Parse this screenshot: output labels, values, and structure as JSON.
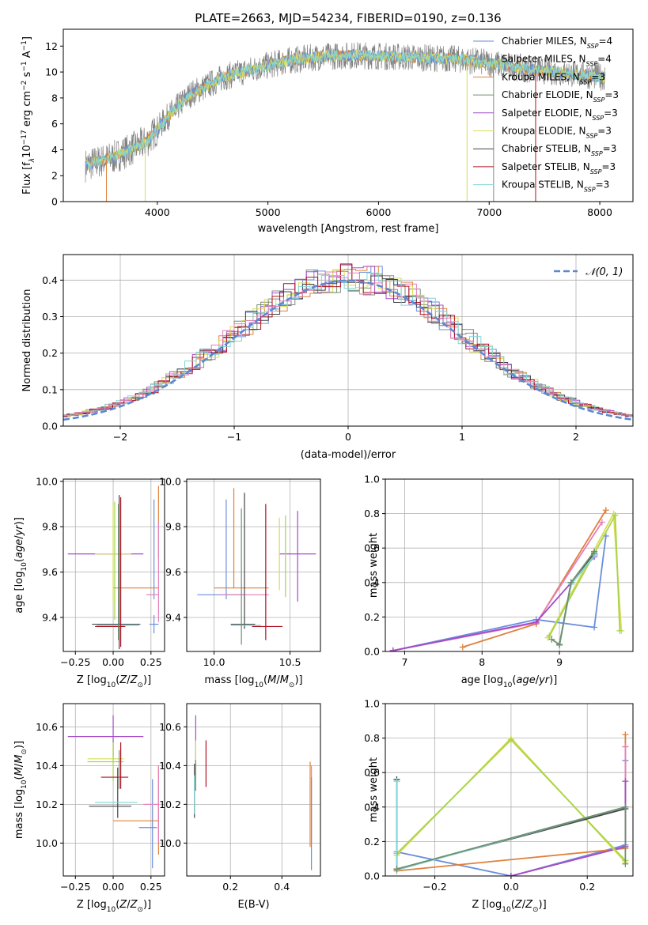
{
  "colors": {
    "Chabrier MILES": "#6a8edc",
    "Salpeter MILES": "#8a8a8a",
    "Kroupa MILES": "#e0803a",
    "Chabrier ELODIE": "#6f8f6f",
    "Salpeter ELODIE": "#a24cc8",
    "Kroupa ELODIE": "#d9db55",
    "Chabrier STELIB": "#444444",
    "Salpeter STELIB": "#b01020",
    "Kroupa STELIB": "#7fd4d8",
    "pink": "#e57fb9",
    "lime": "#a8d44a",
    "gaussian": "#5b87d6"
  },
  "chart_data": [
    {
      "id": "spectrum",
      "type": "line",
      "title": "PLATE=2663, MJD=54234, FIBERID=0190, z=0.136",
      "xlabel": "wavelength [Angstrom, rest frame]",
      "ylabel": "Flux [f",
      "xlim": [
        3150,
        8300
      ],
      "ylim": [
        0,
        13.3
      ],
      "xticks": [
        4000,
        5000,
        6000,
        7000,
        8000
      ],
      "yticks": [
        0,
        2,
        4,
        6,
        8,
        10,
        12
      ],
      "continuum_x": [
        3350,
        3600,
        3900,
        4100,
        4300,
        4600,
        4900,
        5200,
        5500,
        5800,
        6100,
        6400,
        6700,
        7000,
        7300,
        7600,
        8050
      ],
      "continuum_y": [
        2.8,
        3.4,
        4.6,
        6.6,
        8.3,
        9.6,
        10.3,
        10.9,
        11.2,
        11.3,
        11.2,
        11.1,
        11.0,
        10.7,
        10.3,
        10.0,
        9.6
      ],
      "legend": [
        {
          "base": "Chabrier MILES, N",
          "sub": "SSP",
          "tail": "=4"
        },
        {
          "base": "Salpeter MILES, N",
          "sub": "SSP",
          "tail": "=4"
        },
        {
          "base": "Kroupa MILES, N",
          "sub": "SSP",
          "tail": "=3"
        },
        {
          "base": "Chabrier ELODIE, N",
          "sub": "SSP",
          "tail": "=3"
        },
        {
          "base": "Salpeter ELODIE, N",
          "sub": "SSP",
          "tail": "=3"
        },
        {
          "base": "Kroupa ELODIE, N",
          "sub": "SSP",
          "tail": "=3"
        },
        {
          "base": "Chabrier STELIB, N",
          "sub": "SSP",
          "tail": "=3"
        },
        {
          "base": "Salpeter STELIB, N",
          "sub": "SSP",
          "tail": "=3"
        },
        {
          "base": "Kroupa STELIB, N",
          "sub": "SSP",
          "tail": "=3"
        }
      ]
    },
    {
      "id": "residuals",
      "type": "histogram",
      "xlabel": "(data-model)/error",
      "ylabel": "Normed distribution",
      "xlim": [
        -2.5,
        2.5
      ],
      "ylim": [
        0,
        0.47
      ],
      "xticks": [
        -2,
        -1,
        0,
        1,
        2
      ],
      "yticks": [
        0.0,
        0.1,
        0.2,
        0.3,
        0.4
      ],
      "legend": "N(0,1)",
      "gaussian": {
        "mean": 0,
        "sigma": 1
      }
    },
    {
      "id": "age_vs_Z",
      "type": "errorbar",
      "xlabel": "Z [log",
      "ylabel": "age  [log",
      "xlim": [
        -0.33,
        0.34
      ],
      "ylim": [
        9.25,
        10.01
      ],
      "xticks": [
        -0.25,
        0.0,
        0.25
      ],
      "xticklabels": [
        "−0.25",
        "0.00",
        "0.25"
      ],
      "yticks": [
        9.4,
        9.6,
        9.8,
        10.0
      ],
      "points": [
        {
          "c": "Chabrier MILES",
          "x": 0.27,
          "xe": 0.03,
          "y": 9.37,
          "ye": 0.04
        },
        {
          "c": "Chabrier MILES",
          "x": 0.27,
          "xe": 0.0,
          "y": 9.7,
          "ye": 0.22
        },
        {
          "c": "Kroupa MILES",
          "x": 0.15,
          "xe": 0.15,
          "y": 9.53,
          "ye": 0.0
        },
        {
          "c": "Kroupa MILES",
          "x": 0.3,
          "xe": 0.0,
          "y": 9.82,
          "ye": 0.16
        },
        {
          "c": "pink",
          "x": 0.26,
          "xe": 0.04,
          "y": 9.5,
          "ye": 0.0
        },
        {
          "c": "pink",
          "x": 0.3,
          "xe": 0.0,
          "y": 9.6,
          "ye": 0.22
        },
        {
          "c": "Salpeter ELODIE",
          "x": -0.05,
          "xe": 0.25,
          "y": 9.68,
          "ye": 0.0
        },
        {
          "c": "Kroupa ELODIE",
          "x": 0.0,
          "xe": 0.12,
          "y": 9.68,
          "ye": 0.22
        },
        {
          "c": "Chabrier STELIB",
          "x": 0.04,
          "xe": 0.0,
          "y": 9.6,
          "ye": 0.34
        },
        {
          "c": "Chabrier STELIB",
          "x": 0.02,
          "xe": 0.16,
          "y": 9.37,
          "ye": 0.0
        },
        {
          "c": "Kroupa STELIB",
          "x": 0.03,
          "xe": 0.14,
          "y": 9.365,
          "ye": 0.0
        },
        {
          "c": "Salpeter STELIB",
          "x": 0.05,
          "xe": 0.0,
          "y": 9.6,
          "ye": 0.33
        },
        {
          "c": "Salpeter STELIB",
          "x": -0.02,
          "xe": 0.1,
          "y": 9.36,
          "ye": 0.0
        },
        {
          "c": "Chabrier ELODIE",
          "x": 0.035,
          "xe": 0.0,
          "y": 9.6,
          "ye": 0.3
        },
        {
          "c": "lime",
          "x": 0.01,
          "xe": 0.0,
          "y": 9.65,
          "ye": 0.26
        }
      ]
    },
    {
      "id": "age_vs_mass",
      "type": "errorbar",
      "xlabel": "mass [log",
      "xlim": [
        9.82,
        10.7
      ],
      "ylim": [
        9.25,
        10.01
      ],
      "xticks": [
        10.0,
        10.5
      ],
      "yticks": [
        9.4,
        9.6,
        9.8,
        10.0
      ],
      "points": [
        {
          "c": "Chabrier MILES",
          "x": 10.04,
          "xe": 0.15,
          "y": 9.5,
          "ye": 0.0
        },
        {
          "c": "Chabrier MILES",
          "x": 10.08,
          "xe": 0.0,
          "y": 9.7,
          "ye": 0.22
        },
        {
          "c": "Kroupa MILES",
          "x": 10.18,
          "xe": 0.18,
          "y": 9.53,
          "ye": 0.0
        },
        {
          "c": "Kroupa MILES",
          "x": 10.13,
          "xe": 0.0,
          "y": 9.75,
          "ye": 0.22
        },
        {
          "c": "pink",
          "x": 10.2,
          "xe": 0.16,
          "y": 9.5,
          "ye": 0.0
        },
        {
          "c": "Salpeter ELODIE",
          "x": 10.55,
          "xe": 0.12,
          "y": 9.68,
          "ye": 0.0
        },
        {
          "c": "Salpeter ELODIE",
          "x": 10.55,
          "xe": 0.0,
          "y": 9.67,
          "ye": 0.2
        },
        {
          "c": "Kroupa ELODIE",
          "x": 10.43,
          "xe": 0.0,
          "y": 9.68,
          "ye": 0.16
        },
        {
          "c": "lime",
          "x": 10.47,
          "xe": 0.0,
          "y": 9.67,
          "ye": 0.18
        },
        {
          "c": "Chabrier STELIB",
          "x": 10.2,
          "xe": 0.0,
          "y": 9.65,
          "ye": 0.3
        },
        {
          "c": "Chabrier STELIB",
          "x": 10.19,
          "xe": 0.08,
          "y": 9.37,
          "ye": 0.0
        },
        {
          "c": "Kroupa STELIB",
          "x": 10.21,
          "xe": 0.1,
          "y": 9.365,
          "ye": 0.0
        },
        {
          "c": "Salpeter STELIB",
          "x": 10.34,
          "xe": 0.0,
          "y": 9.6,
          "ye": 0.3
        },
        {
          "c": "Salpeter STELIB",
          "x": 10.35,
          "xe": 0.1,
          "y": 9.36,
          "ye": 0.0
        },
        {
          "c": "Chabrier ELODIE",
          "x": 10.18,
          "xe": 0.0,
          "y": 9.58,
          "ye": 0.3
        }
      ]
    },
    {
      "id": "weight_vs_age",
      "type": "line",
      "xlabel": "age  [log",
      "ylabel": "mass weight",
      "xlim": [
        6.75,
        9.95
      ],
      "ylim": [
        0,
        1.0
      ],
      "xticks": [
        7,
        8,
        9
      ],
      "yticks": [
        0.0,
        0.2,
        0.4,
        0.6,
        0.8,
        1.0
      ],
      "series": [
        {
          "c": "Chabrier MILES",
          "x": [
            6.85,
            8.7,
            9.45,
            9.6
          ],
          "y": [
            0.005,
            0.185,
            0.14,
            0.67
          ]
        },
        {
          "c": "Kroupa MILES",
          "x": [
            7.75,
            8.7,
            9.6
          ],
          "y": [
            0.025,
            0.16,
            0.82
          ]
        },
        {
          "c": "pink",
          "x": [
            6.85,
            8.7,
            9.55
          ],
          "y": [
            0.005,
            0.165,
            0.75
          ]
        },
        {
          "c": "Salpeter ELODIE",
          "x": [
            6.85,
            8.7,
            9.45
          ],
          "y": [
            0.005,
            0.17,
            0.55
          ]
        },
        {
          "c": "Kroupa ELODIE",
          "x": [
            8.85,
            9.7,
            9.8
          ],
          "y": [
            0.08,
            0.8,
            0.12
          ]
        },
        {
          "c": "lime",
          "x": [
            8.87,
            9.72,
            9.78
          ],
          "y": [
            0.09,
            0.79,
            0.12
          ]
        },
        {
          "c": "Chabrier STELIB",
          "x": [
            9.0,
            9.15,
            9.45
          ],
          "y": [
            0.04,
            0.4,
            0.57
          ]
        },
        {
          "c": "Kroupa STELIB",
          "x": [
            9.0,
            9.15,
            9.46
          ],
          "y": [
            0.035,
            0.39,
            0.56
          ]
        },
        {
          "c": "Chabrier ELODIE",
          "x": [
            8.9,
            9.0,
            9.15,
            9.45
          ],
          "y": [
            0.07,
            0.04,
            0.4,
            0.58
          ]
        }
      ]
    },
    {
      "id": "mass_vs_Z",
      "type": "errorbar",
      "xlabel": "Z [log",
      "ylabel": "mass [log",
      "xlim": [
        -0.33,
        0.34
      ],
      "ylim": [
        9.83,
        10.72
      ],
      "xticks": [
        -0.25,
        0.0,
        0.25
      ],
      "xticklabels": [
        "−0.25",
        "0.00",
        "0.25"
      ],
      "yticks": [
        10.0,
        10.2,
        10.4,
        10.6
      ],
      "points": [
        {
          "c": "Chabrier MILES",
          "x": 0.23,
          "xe": 0.06,
          "y": 10.08,
          "ye": 0.0
        },
        {
          "c": "Chabrier MILES",
          "x": 0.26,
          "xe": 0.0,
          "y": 10.1,
          "ye": 0.23
        },
        {
          "c": "Kroupa MILES",
          "x": 0.15,
          "xe": 0.15,
          "y": 10.115,
          "ye": 0.0
        },
        {
          "c": "Kroupa MILES",
          "x": 0.3,
          "xe": 0.0,
          "y": 10.17,
          "ye": 0.23
        },
        {
          "c": "pink",
          "x": 0.25,
          "xe": 0.05,
          "y": 10.2,
          "ye": 0.0
        },
        {
          "c": "pink",
          "x": 0.3,
          "xe": 0.0,
          "y": 10.2,
          "ye": 0.2
        },
        {
          "c": "Salpeter ELODIE",
          "x": -0.05,
          "xe": 0.25,
          "y": 10.55,
          "ye": 0.0
        },
        {
          "c": "Salpeter ELODIE",
          "x": 0.0,
          "xe": 0.0,
          "y": 10.55,
          "ye": 0.11
        },
        {
          "c": "Kroupa ELODIE",
          "x": -0.05,
          "xe": 0.12,
          "y": 10.435,
          "ye": 0.0
        },
        {
          "c": "lime",
          "x": -0.05,
          "xe": 0.12,
          "y": 10.42,
          "ye": 0.0
        },
        {
          "c": "lime",
          "x": 0.0,
          "xe": 0.0,
          "y": 10.42,
          "ye": 0.1
        },
        {
          "c": "Chabrier STELIB",
          "x": -0.02,
          "xe": 0.14,
          "y": 10.19,
          "ye": 0.0
        },
        {
          "c": "Chabrier STELIB",
          "x": 0.03,
          "xe": 0.0,
          "y": 10.26,
          "ye": 0.13
        },
        {
          "c": "Salpeter STELIB",
          "x": 0.01,
          "xe": 0.09,
          "y": 10.34,
          "ye": 0.0
        },
        {
          "c": "Salpeter STELIB",
          "x": 0.05,
          "xe": 0.0,
          "y": 10.4,
          "ye": 0.12
        },
        {
          "c": "Kroupa STELIB",
          "x": 0.02,
          "xe": 0.14,
          "y": 10.21,
          "ye": 0.0
        },
        {
          "c": "Chabrier ELODIE",
          "x": 0.04,
          "xe": 0.0,
          "y": 10.38,
          "ye": 0.1
        }
      ]
    },
    {
      "id": "mass_vs_EBV",
      "type": "errorbar",
      "xlabel": "E(B-V)",
      "xlim": [
        0.03,
        0.55
      ],
      "ylim": [
        9.83,
        10.72
      ],
      "xticks": [
        0.2,
        0.4
      ],
      "yticks": [
        10.0,
        10.2,
        10.4,
        10.6
      ],
      "points": [
        {
          "c": "Salpeter ELODIE",
          "x": 0.065,
          "xe": 0.0,
          "y": 10.54,
          "ye": 0.12
        },
        {
          "c": "Kroupa ELODIE",
          "x": 0.065,
          "xe": 0.0,
          "y": 10.43,
          "ye": 0.1
        },
        {
          "c": "Chabrier STELIB",
          "x": 0.06,
          "xe": 0.0,
          "y": 10.27,
          "ye": 0.14
        },
        {
          "c": "Kroupa STELIB",
          "x": 0.06,
          "xe": 0.0,
          "y": 10.25,
          "ye": 0.1
        },
        {
          "c": "Chabrier ELODIE",
          "x": 0.065,
          "xe": 0.0,
          "y": 10.35,
          "ye": 0.08
        },
        {
          "c": "Salpeter STELIB",
          "x": 0.105,
          "xe": 0.0,
          "y": 10.41,
          "ye": 0.12
        },
        {
          "c": "Kroupa MILES",
          "x": 0.51,
          "xe": 0.0,
          "y": 10.2,
          "ye": 0.22
        },
        {
          "c": "pink",
          "x": 0.515,
          "xe": 0.0,
          "y": 10.2,
          "ye": 0.2
        },
        {
          "c": "Chabrier MILES",
          "x": 0.515,
          "xe": 0.0,
          "y": 10.1,
          "ye": 0.24
        }
      ]
    },
    {
      "id": "weight_vs_Z",
      "type": "line",
      "xlabel": "Z [log",
      "ylabel": "mass weight",
      "xlim": [
        -0.33,
        0.32
      ],
      "ylim": [
        0,
        1.0
      ],
      "xticks": [
        -0.2,
        0.0,
        0.2
      ],
      "xticklabels": [
        "−0.2",
        "0.0",
        "0.2"
      ],
      "yticks": [
        0.0,
        0.2,
        0.4,
        0.6,
        0.8,
        1.0
      ],
      "series": [
        {
          "c": "Chabrier MILES",
          "x": [
            -0.3,
            0.0,
            0.3,
            0.3
          ],
          "y": [
            0.14,
            0.0,
            0.18,
            0.67
          ]
        },
        {
          "c": "Kroupa MILES",
          "x": [
            -0.3,
            0.3,
            0.3,
            0.3
          ],
          "y": [
            0.03,
            0.16,
            0.75,
            0.82
          ]
        },
        {
          "c": "pink",
          "x": [
            0.0,
            0.3,
            0.3
          ],
          "y": [
            0.0,
            0.17,
            0.75
          ]
        },
        {
          "c": "Salpeter ELODIE",
          "x": [
            0.0,
            0.3,
            0.3
          ],
          "y": [
            0.0,
            0.17,
            0.55
          ]
        },
        {
          "c": "Kroupa ELODIE",
          "x": [
            -0.3,
            0.0,
            0.3
          ],
          "y": [
            0.12,
            0.8,
            0.08
          ]
        },
        {
          "c": "lime",
          "x": [
            -0.3,
            0.0,
            0.3
          ],
          "y": [
            0.13,
            0.79,
            0.09
          ]
        },
        {
          "c": "Chabrier STELIB",
          "x": [
            -0.3,
            -0.3,
            0.3
          ],
          "y": [
            0.56,
            0.04,
            0.39
          ]
        },
        {
          "c": "Kroupa STELIB",
          "x": [
            -0.3,
            -0.3,
            0.3
          ],
          "y": [
            0.55,
            0.035,
            0.4
          ]
        },
        {
          "c": "Chabrier ELODIE",
          "x": [
            -0.3,
            0.3,
            0.3
          ],
          "y": [
            0.04,
            0.4,
            0.07
          ]
        }
      ]
    }
  ]
}
